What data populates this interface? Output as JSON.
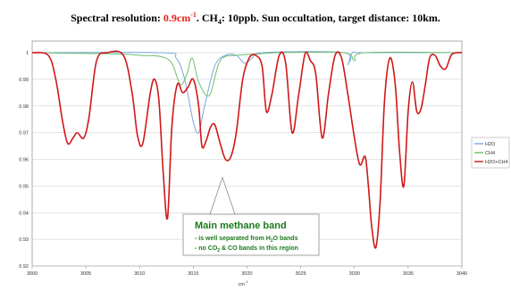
{
  "chart_data": {
    "type": "line",
    "title_parts": {
      "res_label": "Spectral resolution: ",
      "res_value": "0.9cm",
      "res_exp": "-1",
      "ch4_prefix": ".  CH",
      "ch4_sub": "4",
      "ch4_suffix": ": 10ppb.  Sun occultation, target distance: 10km."
    },
    "colors": {
      "res_value": "#e8241c",
      "H2O": "#7aa7e0",
      "CH4": "#6fbf6f",
      "H2O+CH4": "#d01818",
      "annotation": "#1a7a1a"
    },
    "xlabel": "cm",
    "xlabel_exp": "-1",
    "xlim": [
      3000,
      3040
    ],
    "ylim": [
      0.92,
      1.0
    ],
    "x_ticks": [
      "3000",
      "3005",
      "3010",
      "3015",
      "3020",
      "3025",
      "3030",
      "3035",
      "3040"
    ],
    "y_ticks": [
      "0.92",
      "0.93",
      "0.94",
      "0.95",
      "0.96",
      "0.97",
      "0.98",
      "0.99",
      "1"
    ],
    "grid": "horizontal",
    "legend_position": "right",
    "legend": [
      "H2O",
      "CH4",
      "H2O+CH4"
    ],
    "series": [
      {
        "name": "H2O",
        "x": [
          3000,
          3012,
          3013.4,
          3014.2,
          3015,
          3015.5,
          3016,
          3017,
          3018,
          3019,
          3019.8,
          3020.5,
          3021.5,
          3029,
          3029.4,
          3029.8,
          3031,
          3040
        ],
        "y": [
          1.0,
          1.0,
          0.998,
          0.99,
          0.974,
          0.97,
          0.979,
          0.995,
          0.999,
          0.999,
          0.996,
          0.998,
          1.0,
          1.0,
          0.9955,
          1.0,
          1.0,
          1.0
        ]
      },
      {
        "name": "CH4",
        "x": [
          3000,
          3008,
          3010,
          3012,
          3013,
          3013.8,
          3014.4,
          3014.9,
          3015.5,
          3016.5,
          3017.5,
          3019,
          3021,
          3023,
          3029,
          3030,
          3031,
          3040
        ],
        "y": [
          1.0,
          0.9995,
          0.999,
          0.9985,
          0.996,
          0.988,
          0.992,
          0.998,
          0.989,
          0.984,
          0.997,
          0.999,
          0.9995,
          1.0,
          1.0,
          0.997,
          1.0,
          1.0
        ]
      },
      {
        "name": "H2O+CH4",
        "x": [
          3000,
          3001.5,
          3002.2,
          3002.8,
          3003.3,
          3003.8,
          3004.2,
          3004.8,
          3005.3,
          3006,
          3007,
          3008.5,
          3009.3,
          3009.8,
          3010.3,
          3011,
          3011.4,
          3011.8,
          3012.2,
          3012.6,
          3013,
          3013.5,
          3014,
          3014.5,
          3015,
          3015.5,
          3015.8,
          3016.2,
          3016.6,
          3017,
          3017.5,
          3018,
          3018.5,
          3019,
          3019.6,
          3020.2,
          3020.8,
          3021.4,
          3021.8,
          3022.3,
          3023,
          3023.6,
          3024.2,
          3024.8,
          3025.4,
          3025.9,
          3026.4,
          3027,
          3027.6,
          3028.2,
          3028.8,
          3029.4,
          3030,
          3030.5,
          3031,
          3031.3,
          3031.6,
          3032,
          3032.4,
          3032.8,
          3033.3,
          3033.8,
          3034.2,
          3034.6,
          3035,
          3035.4,
          3035.8,
          3036.2,
          3036.6,
          3037,
          3037.5,
          3038,
          3038.5,
          3039,
          3039.5,
          3040
        ],
        "y": [
          1.0,
          0.999,
          0.99,
          0.975,
          0.966,
          0.968,
          0.97,
          0.968,
          0.976,
          0.997,
          1.0,
          0.999,
          0.985,
          0.969,
          0.966,
          0.985,
          0.99,
          0.982,
          0.955,
          0.938,
          0.972,
          0.988,
          0.985,
          0.987,
          0.99,
          0.98,
          0.965,
          0.967,
          0.972,
          0.973,
          0.966,
          0.96,
          0.961,
          0.97,
          0.99,
          0.998,
          0.999,
          0.995,
          0.978,
          0.984,
          0.999,
          0.996,
          0.97,
          0.984,
          0.9995,
          0.997,
          0.992,
          0.968,
          0.985,
          0.999,
          0.998,
          0.984,
          0.968,
          0.958,
          0.961,
          0.95,
          0.935,
          0.927,
          0.945,
          0.982,
          0.998,
          0.988,
          0.963,
          0.95,
          0.978,
          0.989,
          0.978,
          0.979,
          0.988,
          0.998,
          0.999,
          0.995,
          0.994,
          0.999,
          1.0,
          1.0
        ]
      }
    ],
    "annotation": {
      "title": "Main methane band",
      "line1": "- is well separated from H",
      "line1_sub": "2",
      "line1_end": "O bands",
      "line2": "- no CO",
      "line2_sub": "2",
      "line2_end": " & CO bands in this region"
    }
  }
}
